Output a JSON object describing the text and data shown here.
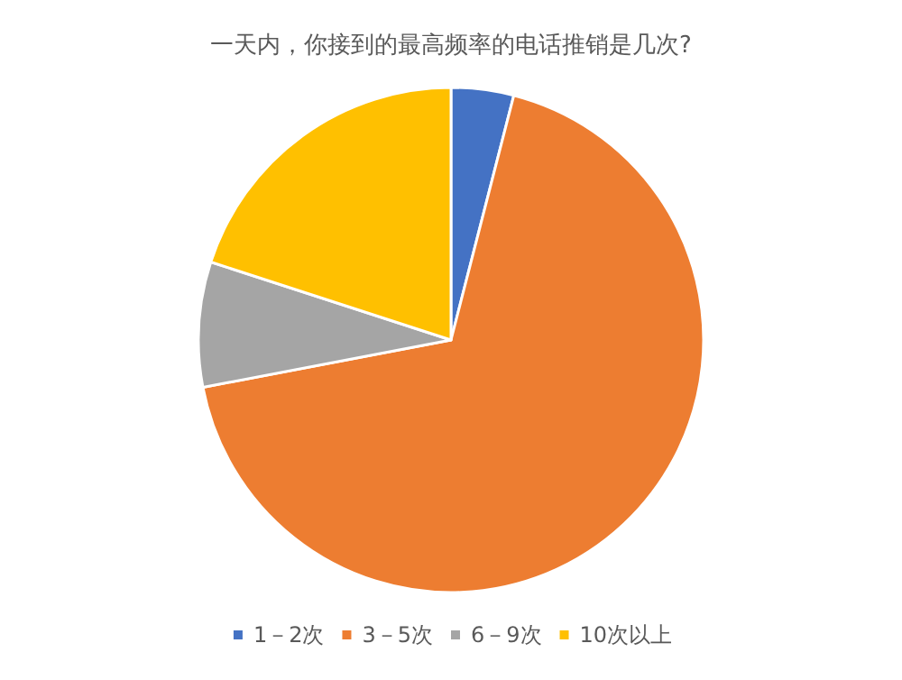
{
  "chart_data": {
    "type": "pie",
    "title": "一天内，你接到的最高频率的电话推销是几次?",
    "categories": [
      "1－2次",
      "3－5次",
      "6－9次",
      "10次以上"
    ],
    "values": [
      4,
      68,
      8,
      20
    ],
    "colors": [
      "#4472c4",
      "#ed7d31",
      "#a5a5a5",
      "#ffc000"
    ],
    "legend": "bottom"
  }
}
